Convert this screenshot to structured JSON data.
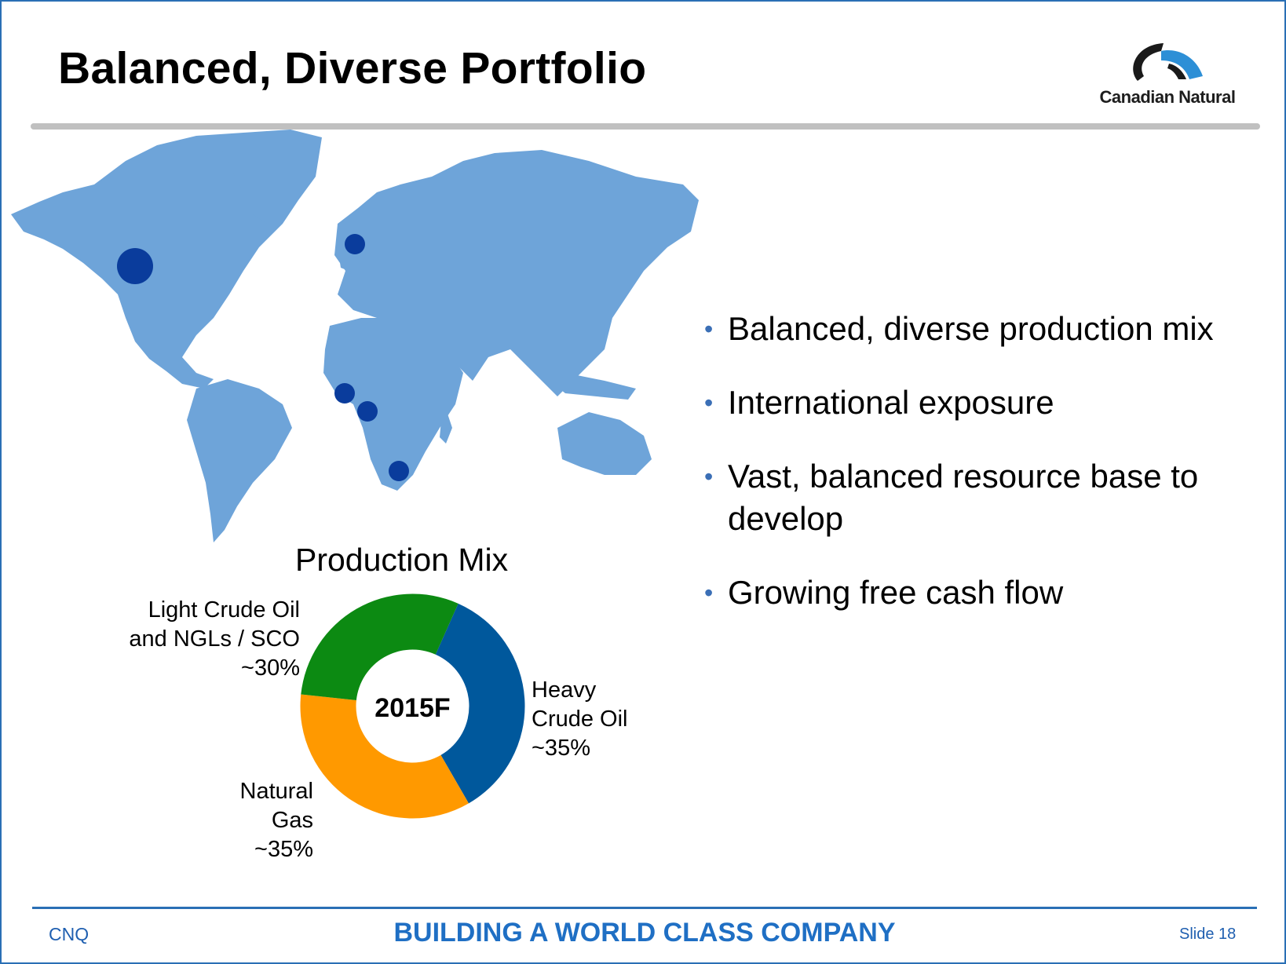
{
  "slide": {
    "title": "Balanced, Diverse Portfolio",
    "logo_text": "Canadian Natural"
  },
  "bullets": [
    "Balanced, diverse production mix",
    "International exposure",
    "Vast, balanced resource base to develop",
    "Growing free cash flow"
  ],
  "colors": {
    "map_land": "#6ea4d9",
    "map_marker": "#0a3c9c",
    "heavy_crude": "#00589c",
    "natural_gas": "#ff9900",
    "light_crude": "#0c8a12",
    "footer_blue": "#1f6fc4"
  },
  "map": {
    "markers": [
      "north-america",
      "north-sea",
      "west-africa-1",
      "west-africa-2",
      "south-africa"
    ]
  },
  "chart_data": {
    "type": "pie",
    "title": "Production Mix",
    "center_label": "2015F",
    "slices": [
      {
        "name": "Heavy Crude Oil",
        "value": 35,
        "label": "~35%",
        "color": "#00589c"
      },
      {
        "name": "Natural Gas",
        "value": 35,
        "label": "~35%",
        "color": "#ff9900"
      },
      {
        "name": "Light Crude Oil and NGLs / SCO",
        "value": 30,
        "label": "~30%",
        "color": "#0c8a12"
      }
    ],
    "labels": {
      "light": [
        "Light Crude Oil",
        "and NGLs / SCO",
        "~30%"
      ],
      "heavy": [
        "Heavy",
        "Crude Oil",
        "~35%"
      ],
      "gas": [
        "Natural",
        "Gas",
        "~35%"
      ]
    }
  },
  "footer": {
    "left": "CNQ",
    "center": "BUILDING A WORLD CLASS COMPANY",
    "right": "Slide 18"
  }
}
